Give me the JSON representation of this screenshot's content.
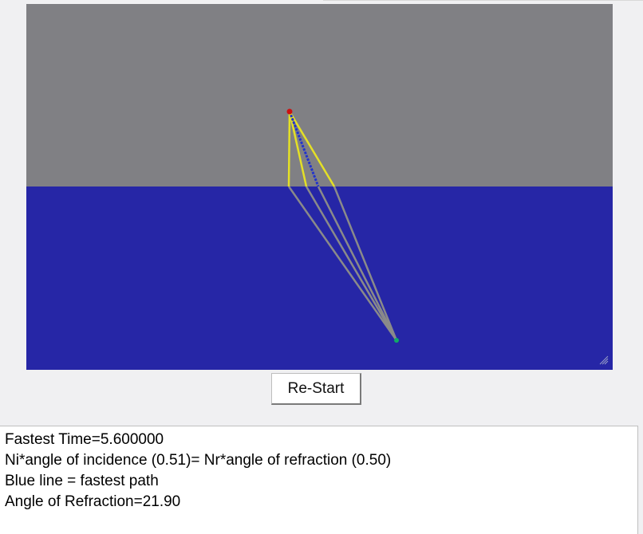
{
  "simulation": {
    "colors": {
      "air": "#808084",
      "water": "#2626a6",
      "trial_path": "#e4e026",
      "underwater_path": "#8a8a8a",
      "fastest_path": "#2233cc",
      "source": "#cc1111",
      "target": "#11aa66"
    },
    "controls": {
      "restart_label": "Re-Start"
    }
  },
  "output": {
    "fastest_time": "Fastest Time=5.600000",
    "snell_relation": "Ni*angle of incidence (0.51)= Nr*angle of refraction (0.50)",
    "legend": "Blue line = fastest path",
    "angle_of_refraction": "Angle of Refraction=21.90"
  }
}
